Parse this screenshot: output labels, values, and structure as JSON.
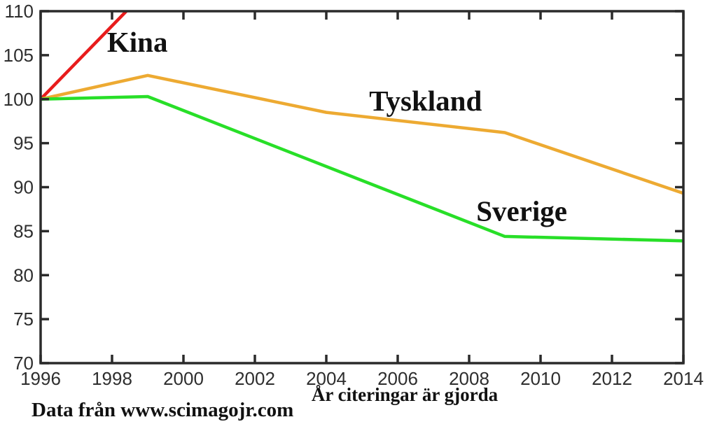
{
  "chart_data": {
    "type": "line",
    "title": "",
    "xlabel": "År citeringar är gjorda",
    "ylabel": "",
    "caption": "Data från www.scimagojr.com",
    "xlim": [
      1996,
      2014
    ],
    "ylim": [
      70,
      110
    ],
    "x_ticks": [
      1996,
      1998,
      2000,
      2002,
      2004,
      2006,
      2008,
      2010,
      2012,
      2014
    ],
    "y_ticks": [
      70,
      75,
      80,
      85,
      90,
      95,
      100,
      105,
      110
    ],
    "grid": false,
    "legend_position": "inline-labels-near-lines",
    "axis_color": "#2b2b2b",
    "tick_label_color": "#2e2e2e",
    "series": [
      {
        "name": "Kina",
        "color": "#e81c1c",
        "x": [
          1996,
          1998.4
        ],
        "values": [
          100,
          110
        ],
        "note": "rises steeply off-scale; clipped at top axis (110)"
      },
      {
        "name": "Tyskland",
        "color": "#edaa32",
        "x": [
          1996,
          1999,
          2004,
          2009,
          2014
        ],
        "values": [
          100,
          102.7,
          98.5,
          96.2,
          89.3
        ]
      },
      {
        "name": "Sverige",
        "color": "#28df28",
        "x": [
          1996,
          1999,
          2009,
          2014
        ],
        "values": [
          100,
          100.3,
          84.4,
          83.9
        ]
      }
    ],
    "annotations": [
      {
        "text": "Kina",
        "x": 1997.86,
        "y": 105.4
      },
      {
        "text": "Tyskland",
        "x": 2005.2,
        "y": 98.7
      },
      {
        "text": "Sverige",
        "x": 2008.2,
        "y": 86.2
      }
    ]
  }
}
